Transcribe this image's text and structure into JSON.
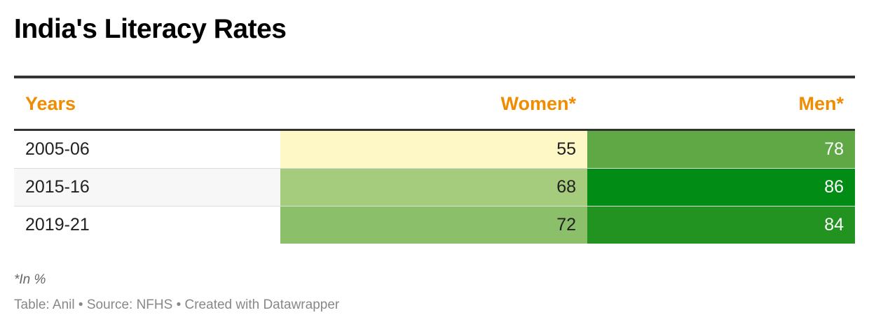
{
  "title": "India's Literacy Rates",
  "header_color": "#f08c00",
  "table": {
    "headers": [
      "Years",
      "Women*",
      "Men*"
    ]
  },
  "chart_data": {
    "type": "table",
    "title": "India's Literacy Rates",
    "columns": [
      "Years",
      "Women*",
      "Men*"
    ],
    "rows": [
      {
        "year": "2005-06",
        "women": 55,
        "men": 78
      },
      {
        "year": "2015-16",
        "women": 68,
        "men": 86
      },
      {
        "year": "2019-21",
        "women": 72,
        "men": 84
      }
    ],
    "cell_colors": {
      "women": [
        "#fdf8c6",
        "#a5cb7c",
        "#8cbf6a"
      ],
      "men": [
        "#5fa845",
        "#008c15",
        "#229320"
      ]
    },
    "row_backgrounds": [
      "#ffffff",
      "#f7f7f7",
      "#ffffff"
    ]
  },
  "footnote": "*In %",
  "credits": "Table: Anil • Source: NFHS • Created with Datawrapper"
}
